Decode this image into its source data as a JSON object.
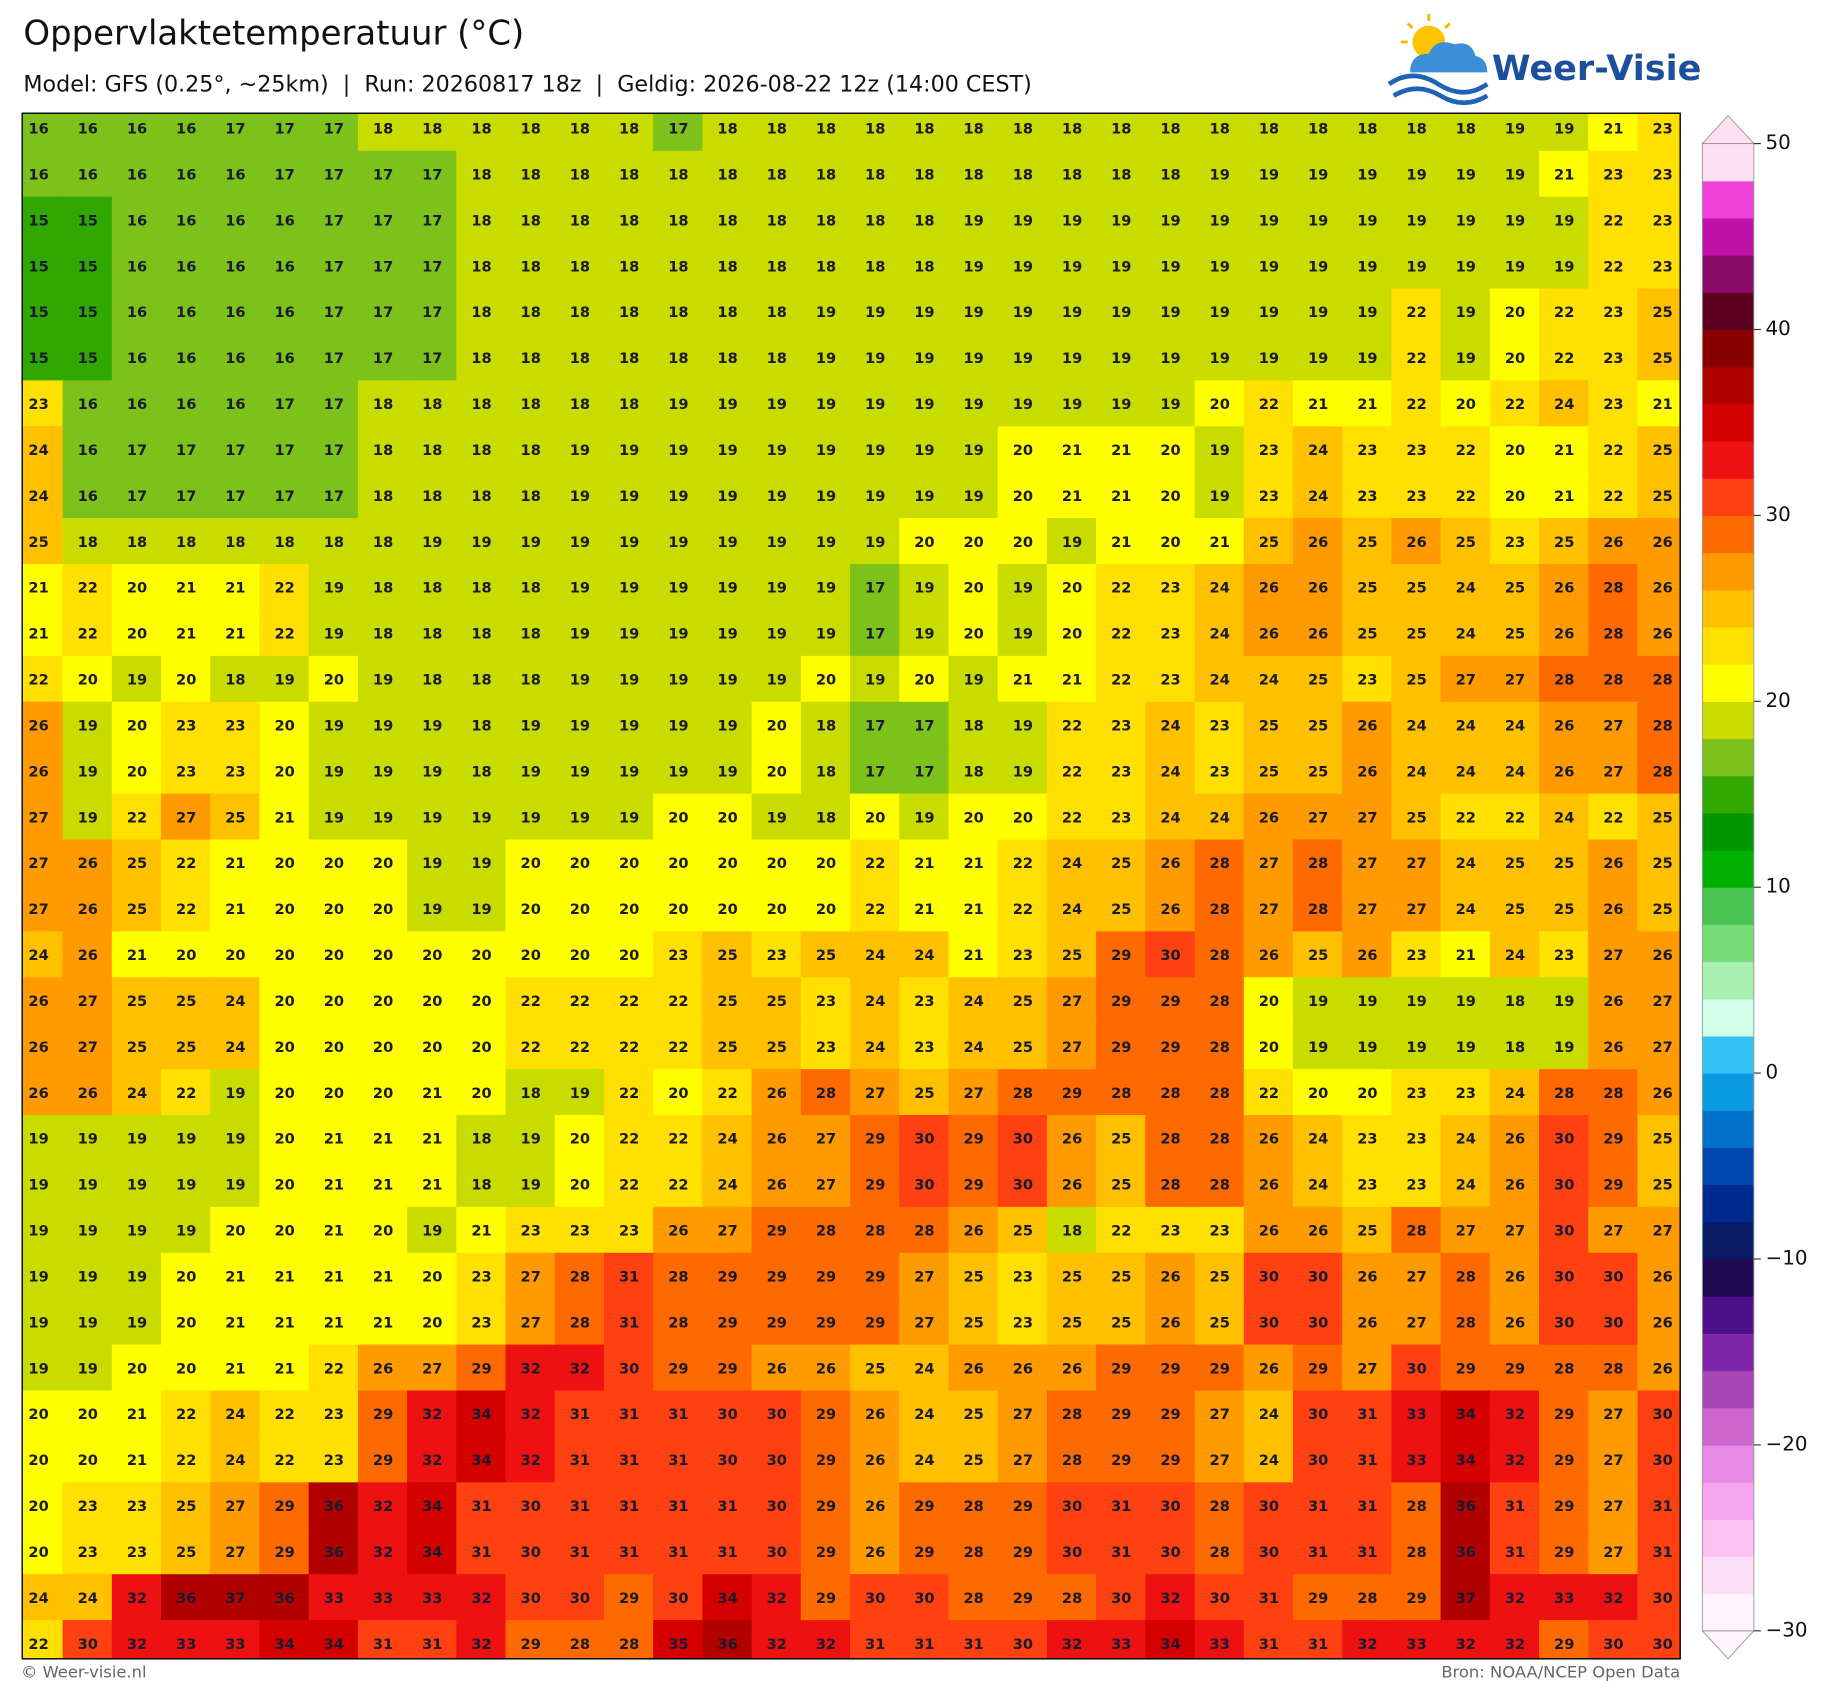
{
  "chart_data": {
    "type": "heatmap",
    "title": "Oppervlaktetemperatuur (°C)",
    "subtitle": "Model: GFS (0.25°, ~25km)  |  Run: 20260817 18z  |  Geldig: 2026-08-22 12z (14:00 CEST)",
    "logo": "Weer-Visie",
    "credit": "© Weer-visie.nl",
    "source": "Bron: NOAA/NCEP Open Data",
    "values": [
      [
        16,
        16,
        16,
        16,
        17,
        17,
        17,
        18,
        18,
        18,
        18,
        18,
        18,
        17,
        18,
        18,
        18,
        18,
        18,
        18,
        18,
        18,
        18,
        18,
        18,
        18,
        18,
        18,
        18,
        18,
        19,
        19,
        21,
        23
      ],
      [
        16,
        16,
        16,
        16,
        16,
        17,
        17,
        17,
        17,
        18,
        18,
        18,
        18,
        18,
        18,
        18,
        18,
        18,
        18,
        18,
        18,
        18,
        18,
        18,
        19,
        19,
        19,
        19,
        19,
        19,
        19,
        21,
        23,
        23
      ],
      [
        15,
        15,
        16,
        16,
        16,
        16,
        17,
        17,
        17,
        18,
        18,
        18,
        18,
        18,
        18,
        18,
        18,
        18,
        18,
        19,
        19,
        19,
        19,
        19,
        19,
        19,
        19,
        19,
        19,
        19,
        19,
        19,
        22,
        23
      ],
      [
        15,
        15,
        16,
        16,
        16,
        16,
        17,
        17,
        17,
        18,
        18,
        18,
        18,
        18,
        18,
        18,
        18,
        18,
        18,
        19,
        19,
        19,
        19,
        19,
        19,
        19,
        19,
        19,
        19,
        19,
        19,
        19,
        22,
        23
      ],
      [
        15,
        15,
        16,
        16,
        16,
        16,
        17,
        17,
        17,
        18,
        18,
        18,
        18,
        18,
        18,
        18,
        19,
        19,
        19,
        19,
        19,
        19,
        19,
        19,
        19,
        19,
        19,
        19,
        22,
        19,
        20,
        22,
        23,
        25
      ],
      [
        15,
        15,
        16,
        16,
        16,
        16,
        17,
        17,
        17,
        18,
        18,
        18,
        18,
        18,
        18,
        18,
        19,
        19,
        19,
        19,
        19,
        19,
        19,
        19,
        19,
        19,
        19,
        19,
        22,
        19,
        20,
        22,
        23,
        25
      ],
      [
        23,
        16,
        16,
        16,
        16,
        17,
        17,
        18,
        18,
        18,
        18,
        18,
        18,
        19,
        19,
        19,
        19,
        19,
        19,
        19,
        19,
        19,
        19,
        19,
        20,
        22,
        21,
        21,
        22,
        20,
        22,
        24,
        23,
        21
      ],
      [
        24,
        16,
        17,
        17,
        17,
        17,
        17,
        18,
        18,
        18,
        18,
        19,
        19,
        19,
        19,
        19,
        19,
        19,
        19,
        19,
        20,
        21,
        21,
        20,
        19,
        23,
        24,
        23,
        23,
        22,
        20,
        21,
        22,
        25
      ],
      [
        24,
        16,
        17,
        17,
        17,
        17,
        17,
        18,
        18,
        18,
        18,
        19,
        19,
        19,
        19,
        19,
        19,
        19,
        19,
        19,
        20,
        21,
        21,
        20,
        19,
        23,
        24,
        23,
        23,
        22,
        20,
        21,
        22,
        25
      ],
      [
        25,
        18,
        18,
        18,
        18,
        18,
        18,
        18,
        19,
        19,
        19,
        19,
        19,
        19,
        19,
        19,
        19,
        19,
        20,
        20,
        20,
        19,
        21,
        20,
        21,
        25,
        26,
        25,
        26,
        25,
        23,
        25,
        26,
        26
      ],
      [
        21,
        22,
        20,
        21,
        21,
        22,
        19,
        18,
        18,
        18,
        18,
        19,
        19,
        19,
        19,
        19,
        19,
        17,
        19,
        20,
        19,
        20,
        22,
        23,
        24,
        26,
        26,
        25,
        25,
        24,
        25,
        26,
        28,
        26
      ],
      [
        21,
        22,
        20,
        21,
        21,
        22,
        19,
        18,
        18,
        18,
        18,
        19,
        19,
        19,
        19,
        19,
        19,
        17,
        19,
        20,
        19,
        20,
        22,
        23,
        24,
        26,
        26,
        25,
        25,
        24,
        25,
        26,
        28,
        26
      ],
      [
        22,
        20,
        19,
        20,
        18,
        19,
        20,
        19,
        18,
        18,
        18,
        19,
        19,
        19,
        19,
        19,
        20,
        19,
        20,
        19,
        21,
        21,
        22,
        23,
        24,
        24,
        25,
        23,
        25,
        27,
        27,
        28,
        28,
        28
      ],
      [
        26,
        19,
        20,
        23,
        23,
        20,
        19,
        19,
        19,
        18,
        19,
        19,
        19,
        19,
        19,
        20,
        18,
        17,
        17,
        18,
        19,
        22,
        23,
        24,
        23,
        25,
        25,
        26,
        24,
        24,
        24,
        26,
        27,
        28
      ],
      [
        26,
        19,
        20,
        23,
        23,
        20,
        19,
        19,
        19,
        18,
        19,
        19,
        19,
        19,
        19,
        20,
        18,
        17,
        17,
        18,
        19,
        22,
        23,
        24,
        23,
        25,
        25,
        26,
        24,
        24,
        24,
        26,
        27,
        28
      ],
      [
        27,
        19,
        22,
        27,
        25,
        21,
        19,
        19,
        19,
        19,
        19,
        19,
        19,
        20,
        20,
        19,
        18,
        20,
        19,
        20,
        20,
        22,
        23,
        24,
        24,
        26,
        27,
        27,
        25,
        22,
        22,
        24,
        22,
        25
      ],
      [
        27,
        26,
        25,
        22,
        21,
        20,
        20,
        20,
        19,
        19,
        20,
        20,
        20,
        20,
        20,
        20,
        20,
        22,
        21,
        21,
        22,
        24,
        25,
        26,
        28,
        27,
        28,
        27,
        27,
        24,
        25,
        25,
        26,
        25
      ],
      [
        27,
        26,
        25,
        22,
        21,
        20,
        20,
        20,
        19,
        19,
        20,
        20,
        20,
        20,
        20,
        20,
        20,
        22,
        21,
        21,
        22,
        24,
        25,
        26,
        28,
        27,
        28,
        27,
        27,
        24,
        25,
        25,
        26,
        25
      ],
      [
        24,
        26,
        21,
        20,
        20,
        20,
        20,
        20,
        20,
        20,
        20,
        20,
        20,
        23,
        25,
        23,
        25,
        24,
        24,
        21,
        23,
        25,
        29,
        30,
        28,
        26,
        25,
        26,
        23,
        21,
        24,
        23,
        27,
        26
      ],
      [
        26,
        27,
        25,
        25,
        24,
        20,
        20,
        20,
        20,
        20,
        22,
        22,
        22,
        22,
        25,
        25,
        23,
        24,
        23,
        24,
        25,
        27,
        29,
        29,
        28,
        20,
        19,
        19,
        19,
        19,
        18,
        19,
        26,
        27
      ],
      [
        26,
        27,
        25,
        25,
        24,
        20,
        20,
        20,
        20,
        20,
        22,
        22,
        22,
        22,
        25,
        25,
        23,
        24,
        23,
        24,
        25,
        27,
        29,
        29,
        28,
        20,
        19,
        19,
        19,
        19,
        18,
        19,
        26,
        27
      ],
      [
        26,
        26,
        24,
        22,
        19,
        20,
        20,
        20,
        21,
        20,
        18,
        19,
        22,
        20,
        22,
        26,
        28,
        27,
        25,
        27,
        28,
        29,
        28,
        28,
        28,
        22,
        20,
        20,
        23,
        23,
        24,
        28,
        28,
        26
      ],
      [
        19,
        19,
        19,
        19,
        19,
        20,
        21,
        21,
        21,
        18,
        19,
        20,
        22,
        22,
        24,
        26,
        27,
        29,
        30,
        29,
        30,
        26,
        25,
        28,
        28,
        26,
        24,
        23,
        23,
        24,
        26,
        30,
        29,
        25
      ],
      [
        19,
        19,
        19,
        19,
        19,
        20,
        21,
        21,
        21,
        18,
        19,
        20,
        22,
        22,
        24,
        26,
        27,
        29,
        30,
        29,
        30,
        26,
        25,
        28,
        28,
        26,
        24,
        23,
        23,
        24,
        26,
        30,
        29,
        25
      ],
      [
        19,
        19,
        19,
        19,
        20,
        20,
        21,
        20,
        19,
        21,
        23,
        23,
        23,
        26,
        27,
        29,
        28,
        28,
        28,
        26,
        25,
        18,
        22,
        23,
        23,
        26,
        26,
        25,
        28,
        27,
        27,
        30,
        27,
        27
      ],
      [
        19,
        19,
        19,
        20,
        21,
        21,
        21,
        21,
        20,
        23,
        27,
        28,
        31,
        28,
        29,
        29,
        29,
        29,
        27,
        25,
        23,
        25,
        25,
        26,
        25,
        30,
        30,
        26,
        27,
        28,
        26,
        30,
        30,
        26
      ],
      [
        19,
        19,
        19,
        20,
        21,
        21,
        21,
        21,
        20,
        23,
        27,
        28,
        31,
        28,
        29,
        29,
        29,
        29,
        27,
        25,
        23,
        25,
        25,
        26,
        25,
        30,
        30,
        26,
        27,
        28,
        26,
        30,
        30,
        26
      ],
      [
        19,
        19,
        20,
        20,
        21,
        21,
        22,
        26,
        27,
        29,
        32,
        32,
        30,
        29,
        29,
        26,
        26,
        25,
        24,
        26,
        26,
        26,
        29,
        29,
        29,
        26,
        29,
        27,
        30,
        29,
        29,
        28,
        28,
        26
      ],
      [
        20,
        20,
        21,
        22,
        24,
        22,
        23,
        29,
        32,
        34,
        32,
        31,
        31,
        31,
        30,
        30,
        29,
        26,
        24,
        25,
        27,
        28,
        29,
        29,
        27,
        24,
        30,
        31,
        33,
        34,
        32,
        29,
        27,
        30
      ],
      [
        20,
        20,
        21,
        22,
        24,
        22,
        23,
        29,
        32,
        34,
        32,
        31,
        31,
        31,
        30,
        30,
        29,
        26,
        24,
        25,
        27,
        28,
        29,
        29,
        27,
        24,
        30,
        31,
        33,
        34,
        32,
        29,
        27,
        30
      ],
      [
        20,
        23,
        23,
        25,
        27,
        29,
        36,
        32,
        34,
        31,
        30,
        31,
        31,
        31,
        31,
        30,
        29,
        26,
        29,
        28,
        29,
        30,
        31,
        30,
        28,
        30,
        31,
        31,
        28,
        36,
        31,
        29,
        27,
        31
      ],
      [
        20,
        23,
        23,
        25,
        27,
        29,
        36,
        32,
        34,
        31,
        30,
        31,
        31,
        31,
        31,
        30,
        29,
        26,
        29,
        28,
        29,
        30,
        31,
        30,
        28,
        30,
        31,
        31,
        28,
        36,
        31,
        29,
        27,
        31
      ],
      [
        24,
        24,
        32,
        36,
        37,
        36,
        33,
        33,
        33,
        32,
        30,
        30,
        29,
        30,
        34,
        32,
        29,
        30,
        30,
        28,
        29,
        28,
        30,
        32,
        30,
        31,
        29,
        28,
        29,
        37,
        32,
        33,
        32,
        30
      ],
      [
        22,
        30,
        32,
        33,
        33,
        34,
        34,
        31,
        31,
        32,
        29,
        28,
        28,
        35,
        36,
        32,
        32,
        31,
        31,
        31,
        30,
        32,
        33,
        34,
        33,
        31,
        31,
        32,
        33,
        32,
        32,
        29,
        30,
        30
      ]
    ],
    "colorbar": {
      "lim": [
        -30,
        50
      ],
      "ticks": [
        {
          "value": -30,
          "label": "−30"
        },
        {
          "value": -20,
          "label": "−20"
        },
        {
          "value": -10,
          "label": "−10"
        },
        0,
        10,
        20,
        30,
        40,
        50
      ],
      "colors": [
        "#fff3fc",
        "#fde0f8",
        "#fcc4f4",
        "#f5a6ee",
        "#e889e3",
        "#cc66cc",
        "#a844b8",
        "#7e26a8",
        "#4d0f8a",
        "#1e0a50",
        "#0a1a66",
        "#002a90",
        "#0048b0",
        "#0070c8",
        "#0a9ae0",
        "#33c4f5",
        "#d2fde6",
        "#a8f0b0",
        "#78dc78",
        "#48c450",
        "#00b000",
        "#009600",
        "#30a800",
        "#7cc21a",
        "#c8dc00",
        "#ffff00",
        "#ffe000",
        "#ffc000",
        "#ff9a00",
        "#ff6a00",
        "#ff4010",
        "#ee1111",
        "#d40000",
        "#b00000",
        "#8a0000",
        "#5c0020",
        "#8a0a6a",
        "#c010a8",
        "#f040d8",
        "#fde0f4"
      ]
    }
  }
}
